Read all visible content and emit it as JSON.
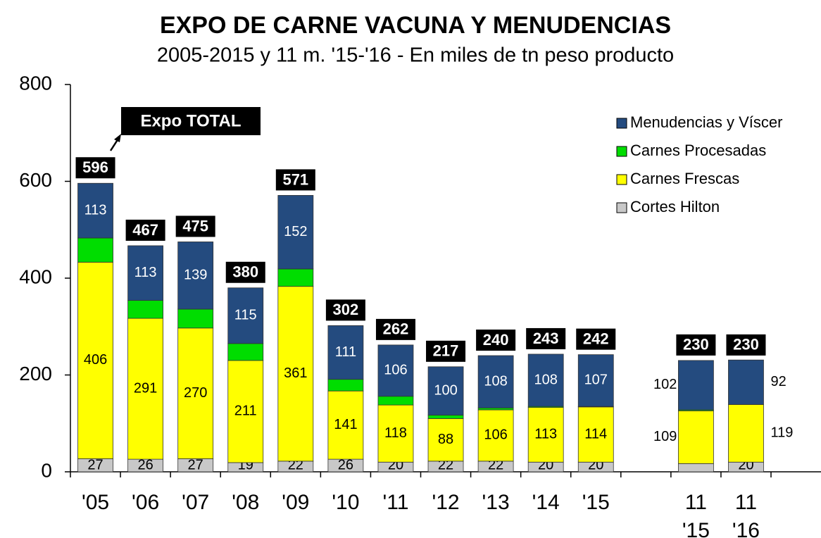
{
  "chart_data": {
    "type": "stacked_bar",
    "title": "EXPO DE CARNE VACUNA Y MENUDENCIAS",
    "subtitle": "2005-2015 y 11 m. '15-'16 - En miles de tn peso producto",
    "annotation": "Expo TOTAL",
    "categories": [
      "'05",
      "'06",
      "'07",
      "'08",
      "'09",
      "'10",
      "'11",
      "'12",
      "'13",
      "'14",
      "'15",
      null,
      "11 '15",
      "11 '16"
    ],
    "series": [
      {
        "name": "Cortes Hilton",
        "color": "#c8c8c8",
        "values": [
          27,
          26,
          27,
          19,
          22,
          26,
          20,
          22,
          22,
          20,
          20,
          null,
          17,
          20
        ],
        "value_labels": [
          "27",
          "26",
          "27",
          "19",
          "22",
          "26",
          "20",
          "22",
          "22",
          "20",
          "20",
          null,
          null,
          "20"
        ]
      },
      {
        "name": "Carnes Frescas",
        "color": "#ffff00",
        "values": [
          406,
          291,
          270,
          211,
          361,
          141,
          118,
          88,
          106,
          113,
          114,
          null,
          109,
          119
        ]
      },
      {
        "name": "Carnes Procesadas",
        "color": "#00dd00",
        "values": [
          50,
          37,
          39,
          35,
          36,
          24,
          18,
          7,
          4,
          2,
          1,
          null,
          2,
          0
        ],
        "value_labels": [
          null,
          null,
          null,
          null,
          null,
          null,
          null,
          null,
          null,
          null,
          null,
          null,
          null,
          null
        ]
      },
      {
        "name": "Menudencias y Víscer",
        "color": "#244b7f",
        "values": [
          113,
          113,
          139,
          115,
          152,
          111,
          106,
          100,
          108,
          108,
          107,
          null,
          102,
          92
        ]
      }
    ],
    "totals": [
      596,
      467,
      475,
      380,
      571,
      302,
      262,
      217,
      240,
      243,
      242,
      null,
      230,
      230
    ],
    "ylim": [
      0,
      800
    ],
    "yticks": [
      0,
      200,
      400,
      600,
      800
    ],
    "grid": false,
    "legend": "upper right"
  }
}
